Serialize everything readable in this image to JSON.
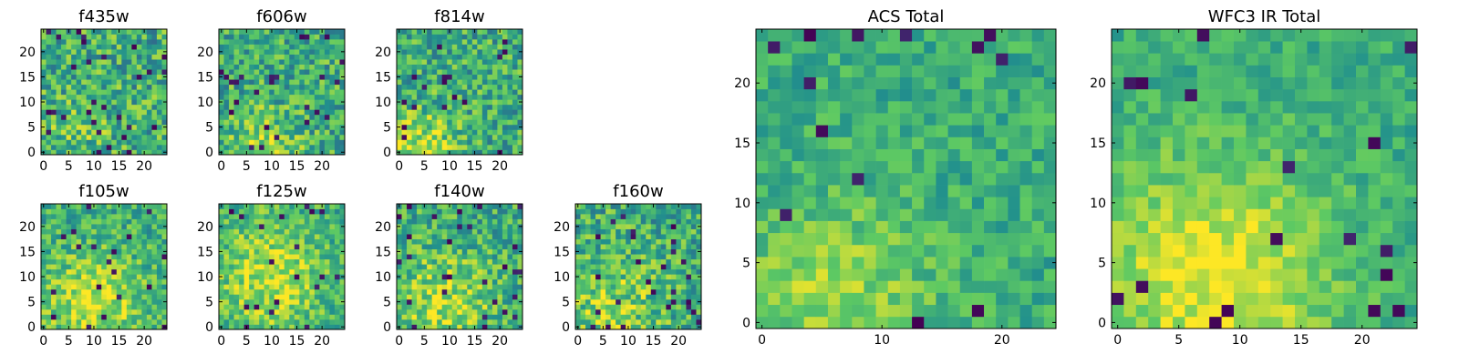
{
  "figure": {
    "colormap": "viridis",
    "colormap_stops": [
      "#440154",
      "#3b528b",
      "#21908d",
      "#5dc963",
      "#fde725"
    ]
  },
  "chart_data": [
    {
      "type": "heatmap",
      "title": "f435w",
      "xlabel": "",
      "ylabel": "",
      "grid_size": [
        25,
        25
      ],
      "xlim": [
        0,
        25
      ],
      "ylim": [
        0,
        25
      ],
      "xticks": [
        0,
        5,
        10,
        15,
        20
      ],
      "yticks": [
        0,
        5,
        10,
        15,
        20
      ],
      "noise": 0.26,
      "warm_spot": {
        "x": 6,
        "y": 2,
        "amplitude": 0.1,
        "radius": 6
      },
      "dark_fraction": 0.04,
      "seed": 11
    },
    {
      "type": "heatmap",
      "title": "f606w",
      "xlabel": "",
      "ylabel": "",
      "grid_size": [
        25,
        25
      ],
      "xlim": [
        0,
        25
      ],
      "ylim": [
        0,
        25
      ],
      "xticks": [
        0,
        5,
        10,
        15,
        20
      ],
      "yticks": [
        0,
        5,
        10,
        15,
        20
      ],
      "noise": 0.24,
      "warm_spot": {
        "x": 8,
        "y": 1,
        "amplitude": 0.25,
        "radius": 5
      },
      "dark_fraction": 0.035,
      "seed": 23
    },
    {
      "type": "heatmap",
      "title": "f814w",
      "xlabel": "",
      "ylabel": "",
      "grid_size": [
        25,
        25
      ],
      "xlim": [
        0,
        25
      ],
      "ylim": [
        0,
        25
      ],
      "xticks": [
        0,
        5,
        10,
        15,
        20
      ],
      "yticks": [
        0,
        5,
        10,
        15,
        20
      ],
      "noise": 0.24,
      "warm_spot": {
        "x": 4,
        "y": 1,
        "amplitude": 0.28,
        "radius": 5
      },
      "dark_fraction": 0.03,
      "seed": 37
    },
    {
      "type": "heatmap",
      "title": "f105w",
      "xlabel": "",
      "ylabel": "",
      "grid_size": [
        25,
        25
      ],
      "xlim": [
        0,
        25
      ],
      "ylim": [
        0,
        25
      ],
      "xticks": [
        0,
        5,
        10,
        15,
        20
      ],
      "yticks": [
        0,
        5,
        10,
        15,
        20
      ],
      "noise": 0.2,
      "warm_spot": {
        "x": 10,
        "y": 5,
        "amplitude": 0.3,
        "radius": 7
      },
      "dark_fraction": 0.03,
      "seed": 41
    },
    {
      "type": "heatmap",
      "title": "f125w",
      "xlabel": "",
      "ylabel": "",
      "grid_size": [
        25,
        25
      ],
      "xlim": [
        0,
        25
      ],
      "ylim": [
        0,
        25
      ],
      "xticks": [
        0,
        5,
        10,
        15,
        20
      ],
      "yticks": [
        0,
        5,
        10,
        15,
        20
      ],
      "noise": 0.2,
      "warm_spot": {
        "x": 10,
        "y": 10,
        "amplitude": 0.28,
        "radius": 8
      },
      "dark_fraction": 0.035,
      "seed": 53
    },
    {
      "type": "heatmap",
      "title": "f140w",
      "xlabel": "",
      "ylabel": "",
      "grid_size": [
        25,
        25
      ],
      "xlim": [
        0,
        25
      ],
      "ylim": [
        0,
        25
      ],
      "xticks": [
        0,
        5,
        10,
        15,
        20
      ],
      "yticks": [
        0,
        5,
        10,
        15,
        20
      ],
      "noise": 0.22,
      "warm_spot": {
        "x": 9,
        "y": 5,
        "amplitude": 0.25,
        "radius": 7
      },
      "dark_fraction": 0.04,
      "seed": 67
    },
    {
      "type": "heatmap",
      "title": "f160w",
      "xlabel": "",
      "ylabel": "",
      "grid_size": [
        25,
        25
      ],
      "xlim": [
        0,
        25
      ],
      "ylim": [
        0,
        25
      ],
      "xticks": [
        0,
        5,
        10,
        15,
        20
      ],
      "yticks": [
        0,
        5,
        10,
        15,
        20
      ],
      "noise": 0.24,
      "warm_spot": {
        "x": 7,
        "y": 4,
        "amplitude": 0.2,
        "radius": 7
      },
      "dark_fraction": 0.05,
      "seed": 79
    },
    {
      "type": "heatmap",
      "title": "ACS Total",
      "xlabel": "",
      "ylabel": "",
      "grid_size": [
        25,
        25
      ],
      "xlim": [
        0,
        25
      ],
      "ylim": [
        0,
        25
      ],
      "xticks": [
        0,
        10,
        20
      ],
      "yticks": [
        0,
        5,
        10,
        15,
        20
      ],
      "noise": 0.14,
      "warm_spot": {
        "x": 6,
        "y": 2,
        "amplitude": 0.22,
        "radius": 6
      },
      "dark_fraction": 0.025,
      "seed": 97
    },
    {
      "type": "heatmap",
      "title": "WFC3 IR Total",
      "xlabel": "",
      "ylabel": "",
      "grid_size": [
        25,
        25
      ],
      "xlim": [
        0,
        25
      ],
      "ylim": [
        0,
        25
      ],
      "xticks": [
        0,
        5,
        10,
        15,
        20
      ],
      "yticks": [
        0,
        5,
        10,
        15,
        20
      ],
      "noise": 0.12,
      "warm_spot": {
        "x": 8,
        "y": 4,
        "amplitude": 0.35,
        "radius": 7
      },
      "dark_fraction": 0.03,
      "seed": 113
    }
  ]
}
